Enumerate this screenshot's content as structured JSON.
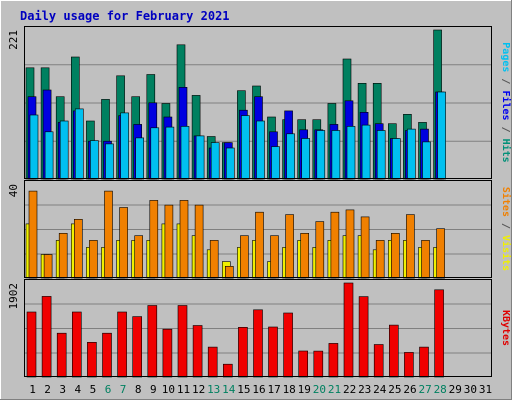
{
  "chart_data": {
    "type": "bar",
    "title": "Daily usage for February 2021",
    "x_ticks": [
      {
        "label": "1",
        "weekend": false
      },
      {
        "label": "2",
        "weekend": false
      },
      {
        "label": "3",
        "weekend": false
      },
      {
        "label": "4",
        "weekend": false
      },
      {
        "label": "5",
        "weekend": false
      },
      {
        "label": "6",
        "weekend": true
      },
      {
        "label": "7",
        "weekend": true
      },
      {
        "label": "8",
        "weekend": false
      },
      {
        "label": "9",
        "weekend": false
      },
      {
        "label": "10",
        "weekend": false
      },
      {
        "label": "11",
        "weekend": false
      },
      {
        "label": "12",
        "weekend": false
      },
      {
        "label": "13",
        "weekend": true
      },
      {
        "label": "14",
        "weekend": true
      },
      {
        "label": "15",
        "weekend": false
      },
      {
        "label": "16",
        "weekend": false
      },
      {
        "label": "17",
        "weekend": false
      },
      {
        "label": "18",
        "weekend": false
      },
      {
        "label": "19",
        "weekend": false
      },
      {
        "label": "20",
        "weekend": true
      },
      {
        "label": "21",
        "weekend": true
      },
      {
        "label": "22",
        "weekend": false
      },
      {
        "label": "23",
        "weekend": false
      },
      {
        "label": "24",
        "weekend": false
      },
      {
        "label": "25",
        "weekend": false
      },
      {
        "label": "26",
        "weekend": false
      },
      {
        "label": "27",
        "weekend": true
      },
      {
        "label": "28",
        "weekend": true
      },
      {
        "label": "29",
        "weekend": false
      },
      {
        "label": "30",
        "weekend": false
      },
      {
        "label": "31",
        "weekend": false
      }
    ],
    "panels": [
      {
        "id": "hits",
        "max_label": "221",
        "ymax": 221,
        "legend": [
          {
            "text": "Pages",
            "color": "#00c0f0"
          },
          {
            "text": " / ",
            "color": "#555555"
          },
          {
            "text": "Files",
            "color": "#0000f0"
          },
          {
            "text": " / ",
            "color": "#555555"
          },
          {
            "text": "Hits",
            "color": "#009078"
          }
        ],
        "series": [
          {
            "name": "Hits",
            "color": "#008060",
            "values": [
              165,
              165,
              122,
              181,
              86,
              118,
              153,
              122,
              155,
              112,
              199,
              124,
              63,
              54,
              131,
              138,
              92,
              88,
              88,
              88,
              112,
              178,
              142,
              142,
              82,
              96,
              84,
              221
            ]
          },
          {
            "name": "Files",
            "color": "#0000e0",
            "values": [
              122,
              132,
              84,
              101,
              56,
              56,
              94,
              81,
              113,
              92,
              136,
              64,
              46,
              54,
              102,
              122,
              70,
              101,
              73,
              73,
              81,
              116,
              99,
              82,
              60,
              72,
              74,
              129
            ]
          },
          {
            "name": "Pages",
            "color": "#00c0f0",
            "values": [
              95,
              70,
              86,
              104,
              57,
              52,
              98,
              61,
              76,
              77,
              78,
              64,
              54,
              46,
              94,
              86,
              48,
              67,
              60,
              72,
              72,
              78,
              80,
              72,
              60,
              74,
              55,
              129
            ]
          }
        ]
      },
      {
        "id": "sites",
        "max_label": "40",
        "ymax": 40,
        "legend": [
          {
            "text": "Sites",
            "color": "#f08000"
          },
          {
            "text": " / ",
            "color": "#555555"
          },
          {
            "text": "Visits",
            "color": "#f0f000"
          }
        ],
        "series": [
          {
            "name": "Visits",
            "color": "#f0f000",
            "values": [
              23,
              10,
              16,
              23,
              13,
              13,
              16,
              16,
              16,
              23,
              23,
              18,
              12,
              7,
              13,
              16,
              7,
              13,
              16,
              13,
              16,
              18,
              18,
              12,
              16,
              16,
              13,
              13
            ]
          },
          {
            "name": "Sites",
            "color": "#f08000",
            "values": [
              37,
              10,
              19,
              25,
              16,
              37,
              30,
              18,
              33,
              31,
              33,
              31,
              16,
              5,
              18,
              28,
              18,
              27,
              19,
              24,
              28,
              29,
              26,
              16,
              19,
              27,
              16,
              21
            ]
          }
        ]
      },
      {
        "id": "kbytes",
        "max_label": "1902",
        "ymax": 1902,
        "legend": [
          {
            "text": "KBytes",
            "color": "#e00000"
          }
        ],
        "series": [
          {
            "name": "KBytes",
            "color": "#f00000",
            "values": [
              1315,
              1631,
              887,
              1315,
              702,
              887,
              1315,
              1223,
              1446,
              968,
              1446,
              1042,
              604,
              260,
              1006,
              1359,
              1012,
              1295,
              526,
              524,
              679,
              1902,
              1626,
              657,
              1051,
              497,
              604,
              1765
            ]
          }
        ]
      }
    ],
    "grid": true
  }
}
